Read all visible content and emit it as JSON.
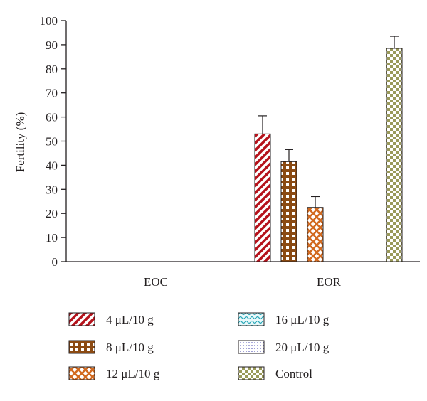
{
  "chart_data": {
    "type": "bar",
    "title": "",
    "xlabel": "",
    "ylabel": "Fertility (%)",
    "ylim": [
      0,
      100
    ],
    "yticks": [
      0,
      10,
      20,
      30,
      40,
      50,
      60,
      70,
      80,
      90,
      100
    ],
    "grid": false,
    "legend_position": "bottom",
    "categories": [
      "EOC",
      "EOR"
    ],
    "series": [
      {
        "name": "4 μL/10 g",
        "values": [
          null,
          53
        ],
        "errors": [
          null,
          7.5
        ],
        "color": "#b5121b",
        "pattern": "diagonal-stripes"
      },
      {
        "name": "8 μL/10 g",
        "values": [
          null,
          41.5
        ],
        "errors": [
          null,
          5
        ],
        "color": "#8b4a12",
        "pattern": "grid"
      },
      {
        "name": "12 μL/10 g",
        "values": [
          null,
          22.5
        ],
        "errors": [
          null,
          4.5
        ],
        "color": "#d2691e",
        "pattern": "crosshatch"
      },
      {
        "name": "16 μL/10 g",
        "values": [
          null,
          null
        ],
        "errors": [
          null,
          null
        ],
        "color": "#2aa8b8",
        "pattern": "wave"
      },
      {
        "name": "20 μL/10 g",
        "values": [
          null,
          null
        ],
        "errors": [
          null,
          null
        ],
        "color": "#3a3aa8",
        "pattern": "dots"
      },
      {
        "name": "Control",
        "values": [
          null,
          88.5
        ],
        "errors": [
          null,
          5
        ],
        "color": "#9a9a5a",
        "pattern": "checker"
      }
    ]
  }
}
